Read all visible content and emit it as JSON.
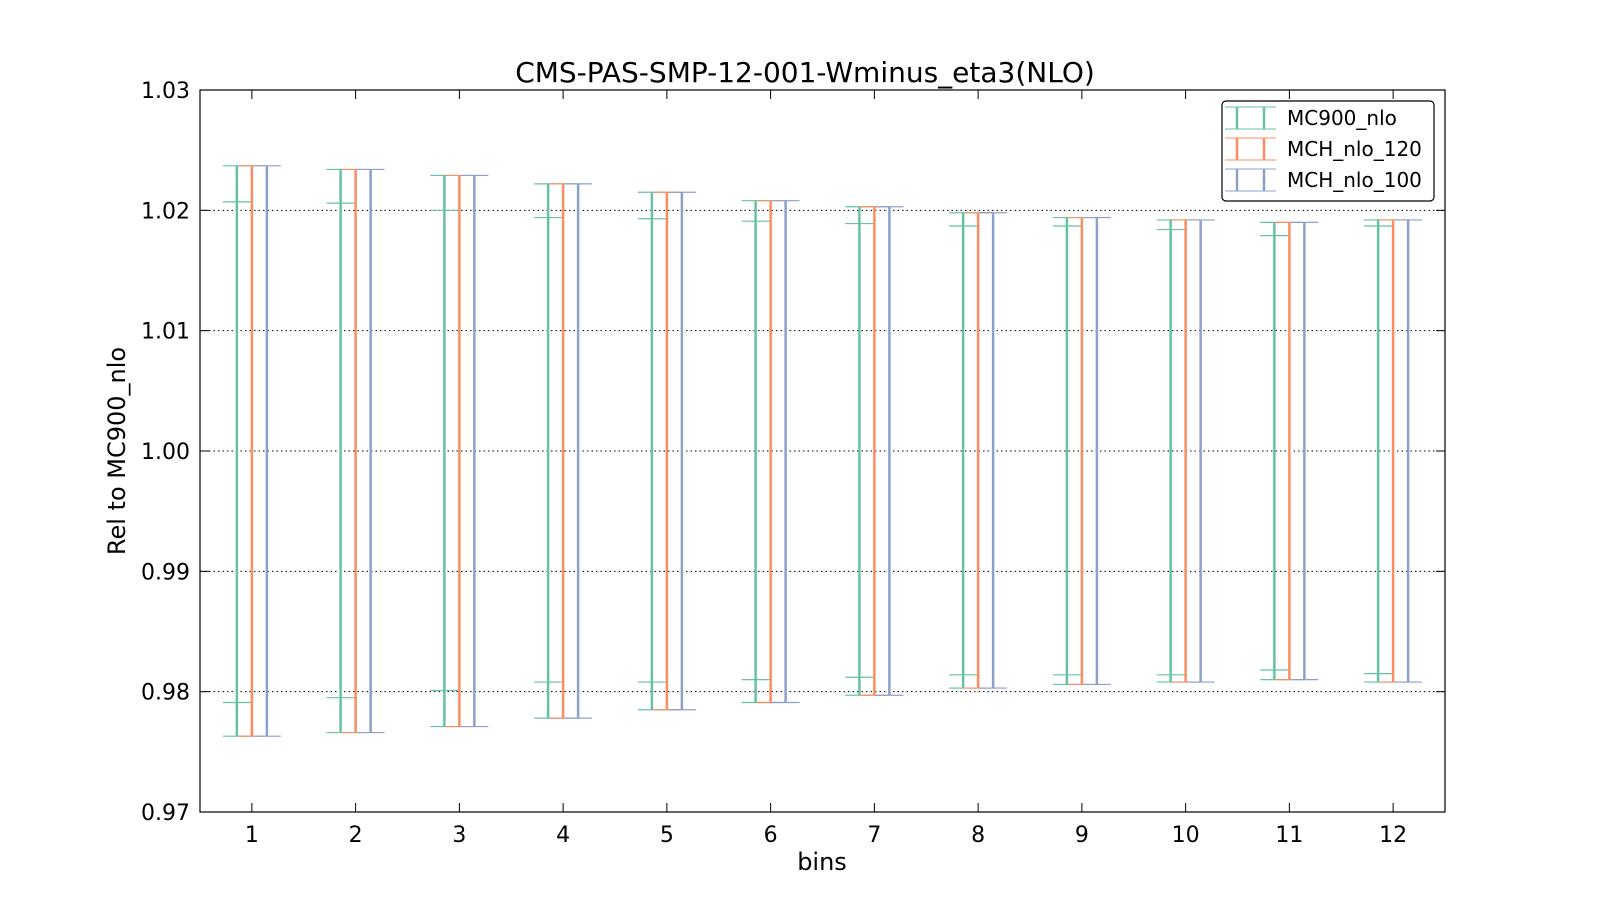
{
  "chart_data": {
    "type": "errorbar",
    "title": "CMS-PAS-SMP-12-001-Wminus_eta3(NLO)",
    "xlabel": "bins",
    "ylabel": "Rel to MC900_nlo",
    "ylim": [
      0.97,
      1.03
    ],
    "xlim": [
      0.5,
      12.5
    ],
    "categories": [
      "1",
      "2",
      "3",
      "4",
      "5",
      "6",
      "7",
      "8",
      "9",
      "10",
      "11",
      "12"
    ],
    "yticks": [
      "0.97",
      "0.98",
      "0.99",
      "1.00",
      "1.01",
      "1.02",
      "1.03"
    ],
    "grid": "horizontal dotted",
    "legend_position": "top-right",
    "series": [
      {
        "name": "MC900_nlo",
        "color": "#66c2a5",
        "x": [
          1,
          2,
          3,
          4,
          5,
          6,
          7,
          8,
          9,
          10,
          11,
          12
        ],
        "high": [
          1.0237,
          1.0234,
          1.0229,
          1.0222,
          1.0215,
          1.0208,
          1.0203,
          1.0198,
          1.0194,
          1.0192,
          1.019,
          1.0192
        ],
        "low": [
          0.9763,
          0.9766,
          0.9771,
          0.9778,
          0.9785,
          0.9791,
          0.9797,
          0.9803,
          0.9806,
          0.9808,
          0.981,
          0.9808
        ],
        "inner_high": [
          1.0207,
          1.0206,
          1.02,
          1.0194,
          1.0193,
          1.0191,
          1.0189,
          1.0187,
          1.0187,
          1.0184,
          1.0179,
          1.0187
        ],
        "inner_low": [
          0.9791,
          0.9795,
          0.9801,
          0.9808,
          0.9808,
          0.981,
          0.9812,
          0.9814,
          0.9814,
          0.9814,
          0.9818,
          0.9815
        ]
      },
      {
        "name": "MCH_nlo_120",
        "color": "#fc8d62",
        "x": [
          1,
          2,
          3,
          4,
          5,
          6,
          7,
          8,
          9,
          10,
          11,
          12
        ],
        "high": [
          1.0237,
          1.0234,
          1.0229,
          1.0222,
          1.0215,
          1.0208,
          1.0203,
          1.0198,
          1.0194,
          1.0192,
          1.019,
          1.0192
        ],
        "low": [
          0.9763,
          0.9766,
          0.9771,
          0.9778,
          0.9785,
          0.9791,
          0.9797,
          0.9803,
          0.9806,
          0.9808,
          0.981,
          0.9808
        ]
      },
      {
        "name": "MCH_nlo_100",
        "color": "#8da0cb",
        "x": [
          1,
          2,
          3,
          4,
          5,
          6,
          7,
          8,
          9,
          10,
          11,
          12
        ],
        "high": [
          1.0237,
          1.0234,
          1.0229,
          1.0222,
          1.0215,
          1.0208,
          1.0203,
          1.0198,
          1.0194,
          1.0192,
          1.019,
          1.0192
        ],
        "low": [
          0.9763,
          0.9766,
          0.9771,
          0.9778,
          0.9785,
          0.9791,
          0.9797,
          0.9803,
          0.9806,
          0.9808,
          0.981,
          0.9808
        ]
      }
    ]
  }
}
